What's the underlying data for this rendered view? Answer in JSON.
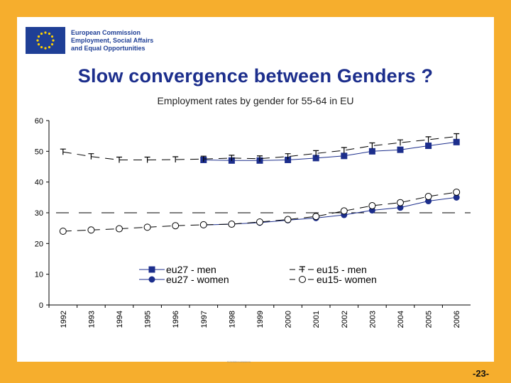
{
  "logo": {
    "lines": [
      "European Commission",
      "Employment, Social Affairs",
      "and Equal Opportunities"
    ],
    "flag_color": "#1f3f96"
  },
  "title": "Slow convergence between Genders ?",
  "subtitle": "Employment rates by gender for 55-64 in EU",
  "footer_small": "Commission européenne",
  "page_number": "-23-",
  "chart_data": {
    "type": "line",
    "x": [
      "1992",
      "1993",
      "1994",
      "1995",
      "1996",
      "1997",
      "1998",
      "1999",
      "2000",
      "2001",
      "2002",
      "2003",
      "2004",
      "2005",
      "2006"
    ],
    "ylim": [
      0,
      60
    ],
    "yticks": [
      0,
      10,
      20,
      30,
      40,
      50,
      60
    ],
    "grid": false,
    "reference_line": 30,
    "legend_placement": "bottom-center",
    "series": [
      {
        "name": "eu27 - men",
        "color": "#1c2e8c",
        "style": "solid",
        "marker": "square-filled",
        "values": [
          null,
          null,
          null,
          null,
          null,
          47.2,
          47.0,
          47.0,
          47.2,
          47.8,
          48.5,
          50.0,
          50.5,
          51.8,
          53.0
        ]
      },
      {
        "name": "eu27  - women",
        "color": "#1c2e8c",
        "style": "solid",
        "marker": "circle-filled",
        "values": [
          null,
          null,
          null,
          null,
          null,
          26.0,
          26.3,
          26.8,
          27.6,
          28.3,
          29.3,
          30.8,
          31.7,
          33.8,
          35.0
        ]
      },
      {
        "name": "eu15  - men",
        "color": "#000000",
        "style": "dashed",
        "marker": "tee",
        "values": [
          49.8,
          48.3,
          47.2,
          47.2,
          47.3,
          47.5,
          47.8,
          47.6,
          48.3,
          49.3,
          50.3,
          51.8,
          52.8,
          53.8,
          54.8
        ]
      },
      {
        "name": "eu15- women",
        "color": "#000000",
        "style": "dashed",
        "marker": "circle-open",
        "values": [
          24.0,
          24.4,
          24.8,
          25.3,
          25.8,
          26.1,
          26.3,
          27.0,
          27.8,
          28.8,
          30.6,
          32.3,
          33.3,
          35.3,
          36.7
        ]
      }
    ]
  }
}
